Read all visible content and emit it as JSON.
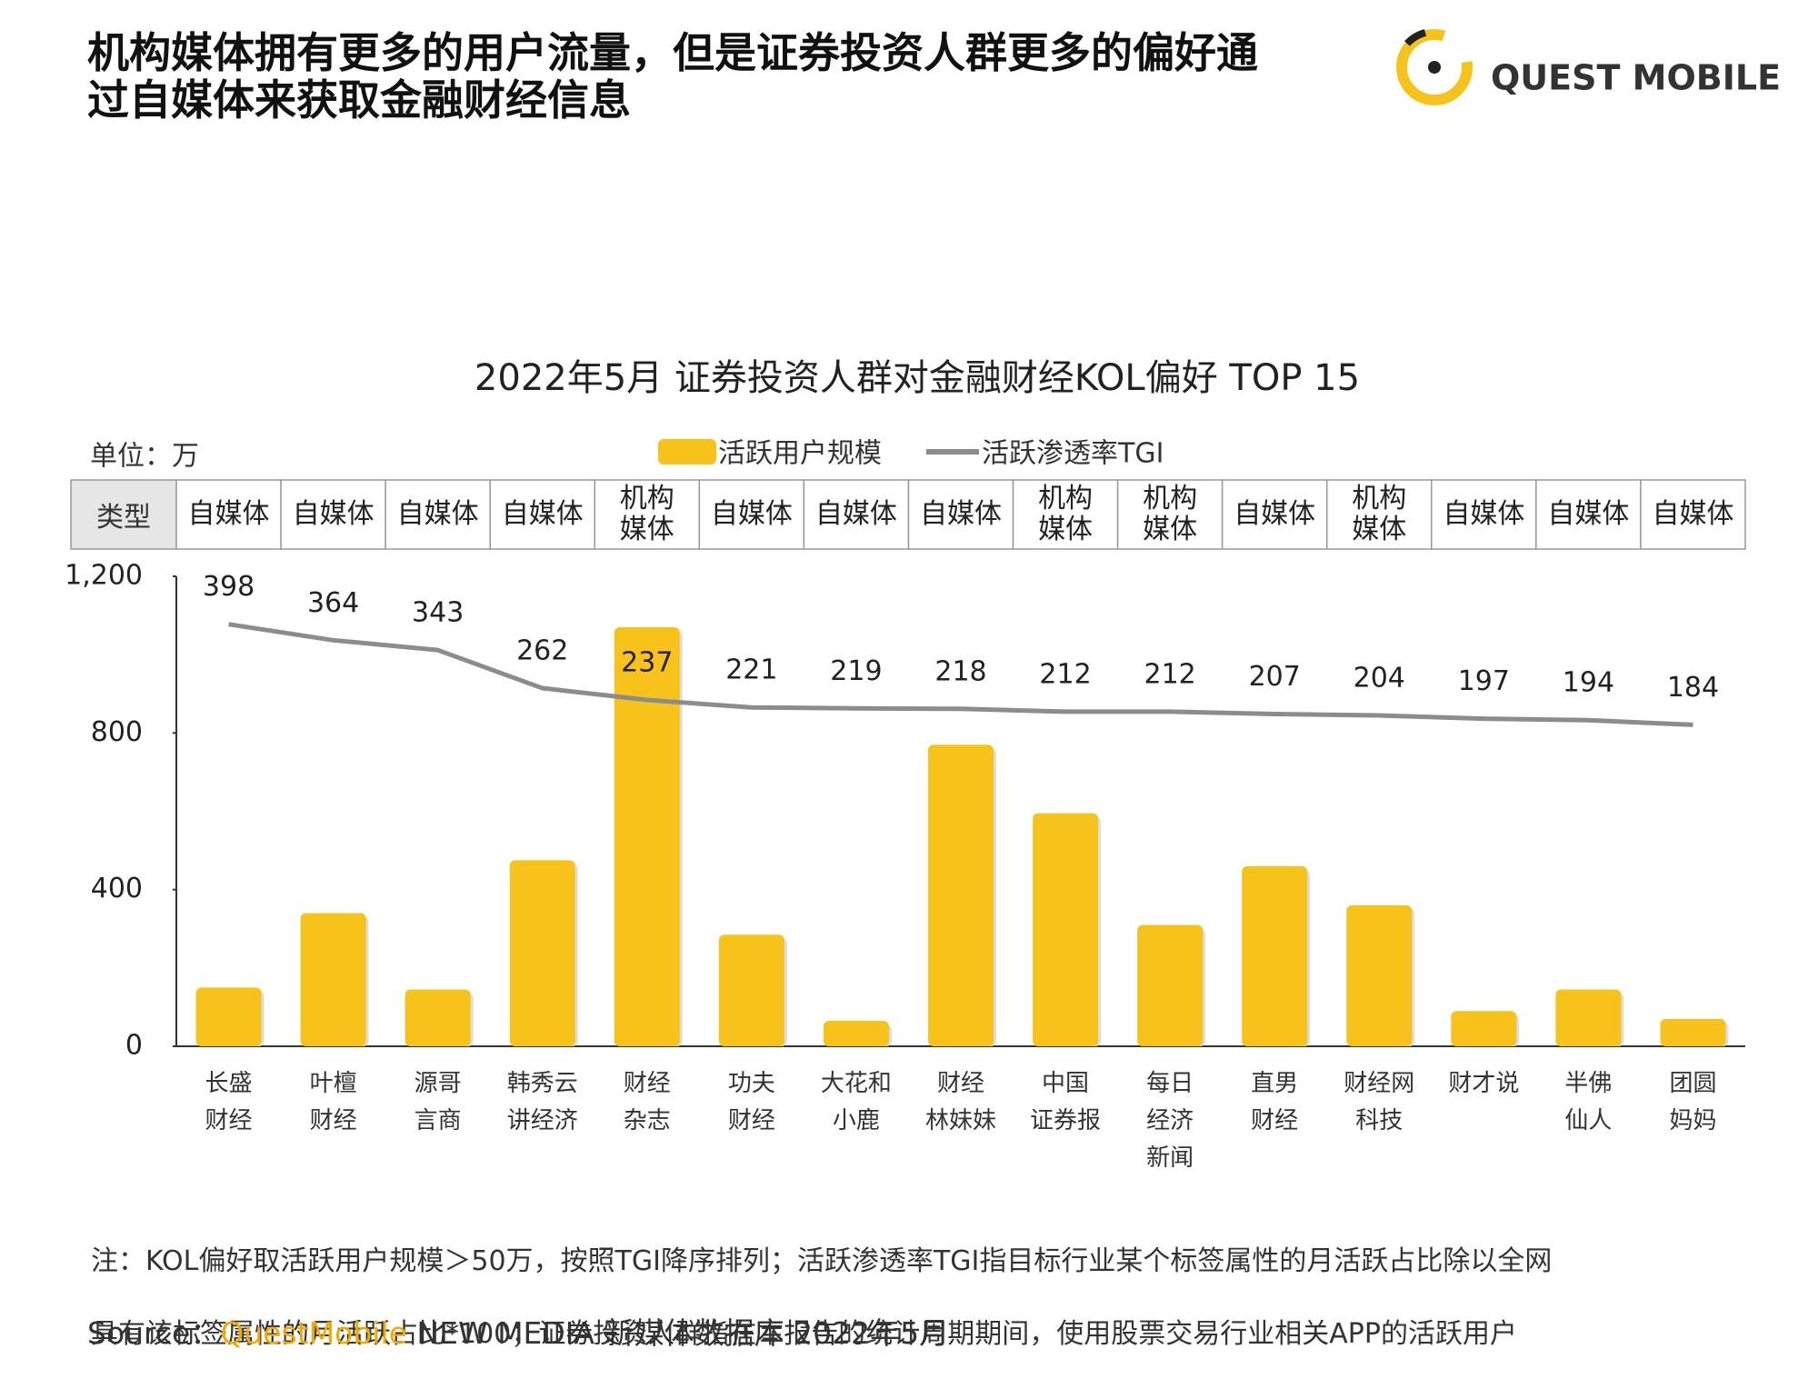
{
  "title": "机构媒体拥有更多的用户流量，但是证券投资人群更多的偏好通\n过自媒体来获取金融财经信息",
  "logo": "QUEST MOBILE",
  "chart_data": {
    "type": "bar",
    "title": "2022年5月 证券投资人群对金融财经KOL偏好 TOP 15",
    "unit": "单位：万",
    "type_header": "类型",
    "types": [
      "自媒体",
      "自媒体",
      "自媒体",
      "自媒体",
      "机构\n媒体",
      "自媒体",
      "自媒体",
      "自媒体",
      "机构\n媒体",
      "机构\n媒体",
      "自媒体",
      "机构\n媒体",
      "自媒体",
      "自媒体",
      "自媒体"
    ],
    "categories": [
      "长盛\n财经",
      "叶檀\n财经",
      "源哥\n言商",
      "韩秀云\n讲经济",
      "财经\n杂志",
      "功夫\n财经",
      "大花和\n小鹿",
      "财经\n林妹妹",
      "中国\n证券报",
      "每日\n经济\n新闻",
      "直男\n财经",
      "财经网\n科技",
      "财才说",
      "半佛\n仙人",
      "团圆\n妈妈"
    ],
    "series": [
      {
        "name": "活跃用户规模",
        "color": "#f7c31b",
        "values": [
          150,
          340,
          145,
          475,
          1070,
          285,
          65,
          770,
          595,
          310,
          460,
          360,
          90,
          145,
          70
        ]
      },
      {
        "name": "活跃渗透率TGI",
        "color": "#8c8c8c",
        "axis": "y2",
        "values": [
          398,
          364,
          343,
          262,
          237,
          221,
          219,
          218,
          212,
          212,
          207,
          204,
          197,
          194,
          184
        ]
      }
    ],
    "ylim": [
      0,
      1200
    ],
    "yticks": [
      0,
      400,
      800,
      {
        "value": 1200,
        "label": "1,200"
      }
    ],
    "y2lim": [
      -500,
      500
    ],
    "grid": false
  },
  "notes": [
    "注：KOL偏好取活跃用户规模＞50万，按照TGI降序排列；活跃渗透率TGI指目标行业某个标签属性的月活跃占比除以全网",
    "具有该标签属性的月活跃占比*100；证券投资人群指在本报告的统计周期期间，使用股票交易行业相关APP的活跃用户"
  ],
  "source": {
    "label": "Source：",
    "brand": "QuestMobile",
    "text": "NEW MEDIA 新媒体数据库  2022年5月"
  }
}
